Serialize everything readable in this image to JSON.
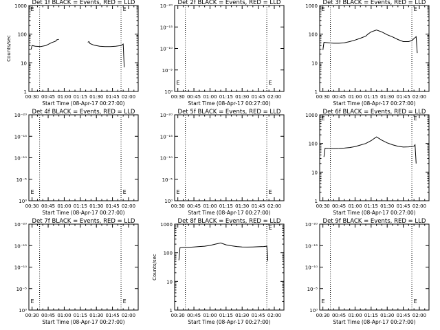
{
  "colors": {
    "axes": "#000000",
    "events": "#000000",
    "background": "#ffffff"
  },
  "shared": {
    "xlabel": "Start Time (08-Apr-17 00:27:00)",
    "x_ticks": [
      "00:30",
      "00:45",
      "01:00",
      "01:15",
      "01:30",
      "01:45",
      "02:00"
    ],
    "x_range_minutes": [
      27,
      129
    ],
    "dotted_lines_minutes": [
      37,
      113
    ]
  },
  "chart_data": [
    {
      "type": "line",
      "title": "Det 1f BLACK = Events, RED = LLD",
      "ylabel": "Counts/sec",
      "yscale": "log",
      "ylim": [
        1,
        1000
      ],
      "y_ticks": [
        "1",
        "10",
        "100",
        "1000"
      ],
      "series": [
        {
          "segments": [
            {
              "x": [
                29,
                30,
                33,
                38,
                43,
                48,
                52,
                53,
                55
              ],
              "y": [
                29,
                40,
                38,
                37,
                40,
                50,
                57,
                63,
                66
              ]
            },
            {
              "x": [
                82,
                83,
                84,
                88,
                93,
                98,
                103,
                108,
                113,
                115,
                116
              ],
              "y": [
                52,
                55,
                47,
                41,
                38,
                37,
                37,
                38,
                40,
                45,
                7
              ]
            }
          ]
        }
      ],
      "markers": [
        {
          "label": "E",
          "x": 28,
          "y": 1000
        },
        {
          "label": "E",
          "x": 114,
          "y": 1000
        }
      ]
    },
    {
      "type": "line",
      "title": "Det 2f BLACK = Events, RED = LLD",
      "ylabel": "",
      "yscale": "log",
      "ylim": [
        1e-06,
        1e-20
      ],
      "y_ticks": [
        "10⁰",
        "10⁻⁵",
        "10⁻¹⁰",
        "10⁻¹⁵",
        "10⁻²⁰"
      ],
      "series": [],
      "markers": [
        {
          "label": "E",
          "x": 28,
          "y": 2e-18
        },
        {
          "label": "E",
          "x": 114,
          "y": 2e-18
        }
      ]
    },
    {
      "type": "line",
      "title": "Det 3f BLACK = Events, RED = LLD",
      "ylabel": "",
      "yscale": "log",
      "ylim": [
        1,
        1000
      ],
      "y_ticks": [
        "1",
        "10",
        "100",
        "1000"
      ],
      "series": [
        {
          "segments": [
            {
              "x": [
                30,
                31,
                35,
                40,
                45,
                50,
                55,
                60,
                65,
                70,
                72,
                75,
                80,
                85,
                90,
                95,
                100,
                105,
                110,
                113,
                115,
                117,
                118
              ],
              "y": [
                28,
                52,
                50,
                48,
                48,
                50,
                55,
                62,
                72,
                85,
                100,
                120,
                140,
                120,
                95,
                80,
                65,
                55,
                55,
                60,
                70,
                82,
                22
              ]
            }
          ]
        }
      ],
      "markers": [
        {
          "label": "E",
          "x": 28,
          "y": 1000
        },
        {
          "label": "E",
          "x": 114,
          "y": 1000
        }
      ]
    },
    {
      "type": "line",
      "title": "Det 4f BLACK = Events, RED = LLD",
      "ylabel": "",
      "yscale": "log",
      "ylim": [
        1e-06,
        1e-20
      ],
      "y_ticks": [
        "10⁰",
        "10⁻⁵",
        "10⁻¹⁰",
        "10⁻¹⁵",
        "10⁻²⁰"
      ],
      "series": [],
      "markers": [
        {
          "label": "E",
          "x": 28,
          "y": 2e-18
        },
        {
          "label": "E",
          "x": 114,
          "y": 2e-18
        }
      ]
    },
    {
      "type": "line",
      "title": "Det 5f BLACK = Events, RED = LLD",
      "ylabel": "",
      "yscale": "log",
      "ylim": [
        1e-06,
        1e-20
      ],
      "y_ticks": [
        "10⁰",
        "10⁻⁵",
        "10⁻¹⁰",
        "10⁻¹⁵",
        "10⁻²⁰"
      ],
      "series": [],
      "markers": [
        {
          "label": "E",
          "x": 28,
          "y": 2e-18
        },
        {
          "label": "E",
          "x": 114,
          "y": 2e-18
        }
      ]
    },
    {
      "type": "line",
      "title": "Det 6f BLACK = Events, RED = LLD",
      "ylabel": "",
      "yscale": "log",
      "ylim": [
        1,
        1000
      ],
      "y_ticks": [
        "1",
        "10",
        "100",
        "1000"
      ],
      "series": [
        {
          "segments": [
            {
              "x": [
                31,
                32,
                35,
                40,
                45,
                50,
                55,
                60,
                65,
                70,
                75,
                80,
                85,
                90,
                95,
                100,
                105,
                110,
                115,
                116,
                117
              ],
              "y": [
                34,
                68,
                67,
                66,
                67,
                69,
                72,
                78,
                88,
                100,
                125,
                170,
                130,
                105,
                90,
                80,
                75,
                76,
                80,
                90,
                20
              ]
            }
          ]
        }
      ],
      "markers": [
        {
          "label": "E",
          "x": 28,
          "y": 1000
        },
        {
          "label": "E",
          "x": 114,
          "y": 1000
        }
      ]
    },
    {
      "type": "line",
      "title": "Det 7f BLACK = Events, RED = LLD",
      "ylabel": "",
      "yscale": "log",
      "ylim": [
        1e-06,
        1e-20
      ],
      "y_ticks": [
        "10⁰",
        "10⁻⁵",
        "10⁻¹⁰",
        "10⁻¹⁵",
        "10⁻²⁰"
      ],
      "series": [],
      "markers": [
        {
          "label": "E",
          "x": 28,
          "y": 2e-18
        },
        {
          "label": "E",
          "x": 114,
          "y": 2e-18
        }
      ]
    },
    {
      "type": "line",
      "title": "Det 8f BLACK = Events, RED = LLD",
      "ylabel": "Counts/sec",
      "yscale": "log",
      "ylim": [
        1,
        1000
      ],
      "y_ticks": [
        "1",
        "10",
        "100",
        "1000"
      ],
      "series": [
        {
          "segments": [
            {
              "x": [
                31,
                32,
                35,
                40,
                45,
                50,
                55,
                60,
                65,
                70,
                75,
                80,
                85,
                90,
                95,
                100,
                105,
                110,
                113,
                114
              ],
              "y": [
                55,
                150,
                155,
                155,
                160,
                165,
                170,
                180,
                200,
                220,
                190,
                175,
                165,
                160,
                158,
                160,
                162,
                165,
                170,
                52
              ]
            }
          ]
        }
      ],
      "markers": [
        {
          "label": "E",
          "x": 114,
          "y": 1000
        }
      ]
    },
    {
      "type": "line",
      "title": "Det 9f BLACK = Events, RED = LLD",
      "ylabel": "",
      "yscale": "log",
      "ylim": [
        1e-06,
        1e-20
      ],
      "y_ticks": [
        "10⁰",
        "10⁻⁵",
        "10⁻¹⁰",
        "10⁻¹⁵",
        "10⁻²⁰"
      ],
      "series": [],
      "markers": [
        {
          "label": "E",
          "x": 28,
          "y": 2e-18
        },
        {
          "label": "E",
          "x": 114,
          "y": 2e-18
        }
      ]
    }
  ]
}
